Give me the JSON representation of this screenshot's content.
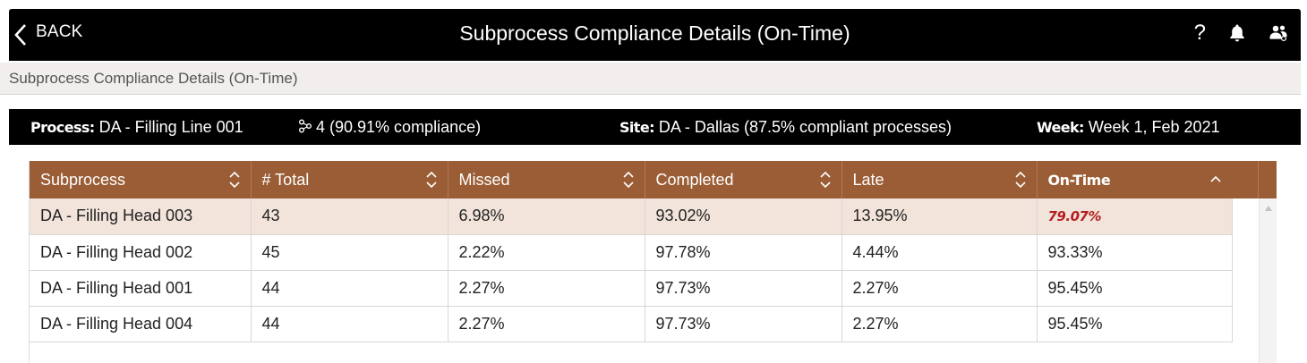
{
  "header": {
    "back_label": "BACK",
    "title": "Subprocess Compliance Details (On-Time)",
    "help_label": "?"
  },
  "breadcrumb": "Subprocess Compliance Details (On-Time)",
  "info": {
    "process_label": "Process:",
    "process_value": "DA - Filling Line 001",
    "subprocess_value": "4 (90.91% compliance)",
    "site_label": "Site:",
    "site_value": "DA - Dallas (87.5% compliant processes)",
    "week_label": "Week:",
    "week_value": "Week 1, Feb 2021"
  },
  "table": {
    "columns": [
      "Subprocess",
      "# Total",
      "Missed",
      "Completed",
      "Late",
      "On-Time"
    ],
    "rows": [
      [
        "DA - Filling Head 003",
        "43",
        "6.98%",
        "93.02%",
        "13.95%",
        "79.07%"
      ],
      [
        "DA - Filling Head 002",
        "45",
        "2.22%",
        "97.78%",
        "4.44%",
        "93.33%"
      ],
      [
        "DA - Filling Head 001",
        "44",
        "2.27%",
        "97.73%",
        "2.27%",
        "95.45%"
      ],
      [
        "DA - Filling Head 004",
        "44",
        "2.27%",
        "97.73%",
        "2.27%",
        "95.45%"
      ]
    ]
  },
  "colors": {
    "header_bg": "#000000",
    "table_header_bg": "#9a5d35",
    "selected_row_bg": "#f2e4db",
    "alert_text": "#b21f1f"
  },
  "icons": [
    "chevron-left-icon",
    "help-icon",
    "bell-icon",
    "users-icon",
    "subprocess-icon",
    "sort-icon",
    "sort-asc-icon"
  ]
}
